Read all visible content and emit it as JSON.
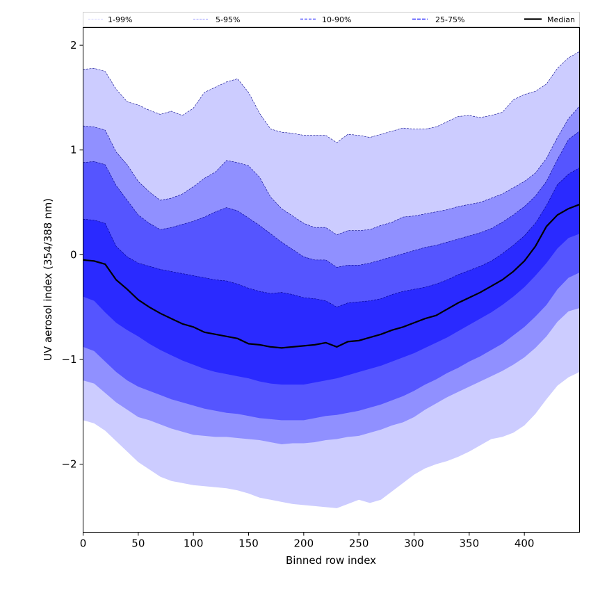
{
  "chart_data": {
    "type": "area",
    "xlabel": "Binned row index",
    "ylabel": "UV aerosol index (354/388 nm)",
    "xlim": [
      0,
      450
    ],
    "ylim": [
      -2.65,
      2.17
    ],
    "x_ticks": [
      0,
      50,
      100,
      150,
      200,
      250,
      300,
      350,
      400
    ],
    "y_ticks": [
      2,
      1,
      0,
      -1,
      -2
    ],
    "x_tick_labels": [
      "0",
      "50",
      "100",
      "150",
      "200",
      "250",
      "300",
      "350",
      "400"
    ],
    "y_tick_labels": [
      "2",
      "1",
      "0",
      "−1",
      "−2"
    ],
    "grid": false,
    "legend_position": "top",
    "legend": [
      "1-99%",
      "5-95%",
      "10-90%",
      "25-75%",
      "Median"
    ],
    "colors": {
      "band_1_99": "#ccccff",
      "band_5_95": "#9090ff",
      "band_10_90": "#5555ff",
      "band_25_75": "#2a2aff",
      "median": "#000000",
      "band_edge": "#00008b"
    },
    "x": [
      0,
      10,
      20,
      30,
      40,
      50,
      60,
      70,
      80,
      90,
      100,
      110,
      120,
      130,
      140,
      150,
      160,
      170,
      180,
      190,
      200,
      210,
      220,
      230,
      240,
      250,
      260,
      270,
      280,
      290,
      300,
      310,
      320,
      330,
      340,
      350,
      360,
      370,
      380,
      390,
      400,
      410,
      420,
      430,
      440,
      450
    ],
    "series": [
      {
        "name": "1-99%",
        "lower": [
          -1.58,
          -1.61,
          -1.68,
          -1.78,
          -1.88,
          -1.98,
          -2.05,
          -2.12,
          -2.16,
          -2.18,
          -2.2,
          -2.21,
          -2.22,
          -2.23,
          -2.25,
          -2.28,
          -2.32,
          -2.34,
          -2.36,
          -2.38,
          -2.39,
          -2.4,
          -2.41,
          -2.42,
          -2.38,
          -2.34,
          -2.37,
          -2.34,
          -2.26,
          -2.18,
          -2.1,
          -2.04,
          -2.0,
          -1.97,
          -1.93,
          -1.88,
          -1.82,
          -1.76,
          -1.74,
          -1.7,
          -1.63,
          -1.52,
          -1.38,
          -1.25,
          -1.17,
          -1.12
        ],
        "upper": [
          1.77,
          1.78,
          1.75,
          1.58,
          1.46,
          1.43,
          1.38,
          1.34,
          1.37,
          1.33,
          1.4,
          1.55,
          1.6,
          1.65,
          1.68,
          1.55,
          1.35,
          1.2,
          1.17,
          1.16,
          1.14,
          1.14,
          1.14,
          1.07,
          1.15,
          1.14,
          1.12,
          1.15,
          1.18,
          1.21,
          1.2,
          1.2,
          1.22,
          1.27,
          1.32,
          1.33,
          1.31,
          1.33,
          1.36,
          1.48,
          1.53,
          1.56,
          1.63,
          1.78,
          1.88,
          1.94
        ]
      },
      {
        "name": "5-95%",
        "lower": [
          -1.2,
          -1.23,
          -1.32,
          -1.41,
          -1.48,
          -1.55,
          -1.58,
          -1.62,
          -1.66,
          -1.69,
          -1.72,
          -1.73,
          -1.74,
          -1.74,
          -1.75,
          -1.76,
          -1.77,
          -1.79,
          -1.81,
          -1.8,
          -1.8,
          -1.79,
          -1.77,
          -1.76,
          -1.74,
          -1.73,
          -1.7,
          -1.67,
          -1.63,
          -1.6,
          -1.55,
          -1.48,
          -1.42,
          -1.36,
          -1.31,
          -1.26,
          -1.21,
          -1.16,
          -1.11,
          -1.05,
          -0.98,
          -0.89,
          -0.78,
          -0.64,
          -0.54,
          -0.51
        ],
        "upper": [
          1.23,
          1.22,
          1.19,
          0.98,
          0.86,
          0.7,
          0.6,
          0.52,
          0.54,
          0.58,
          0.65,
          0.73,
          0.79,
          0.9,
          0.88,
          0.85,
          0.74,
          0.55,
          0.44,
          0.37,
          0.3,
          0.26,
          0.26,
          0.19,
          0.23,
          0.23,
          0.24,
          0.28,
          0.31,
          0.36,
          0.37,
          0.39,
          0.41,
          0.43,
          0.46,
          0.48,
          0.5,
          0.54,
          0.58,
          0.64,
          0.7,
          0.78,
          0.92,
          1.12,
          1.3,
          1.42
        ]
      },
      {
        "name": "10-90%",
        "lower": [
          -0.88,
          -0.92,
          -1.02,
          -1.12,
          -1.2,
          -1.26,
          -1.3,
          -1.34,
          -1.38,
          -1.41,
          -1.44,
          -1.47,
          -1.49,
          -1.51,
          -1.52,
          -1.54,
          -1.56,
          -1.57,
          -1.58,
          -1.58,
          -1.58,
          -1.56,
          -1.54,
          -1.53,
          -1.51,
          -1.49,
          -1.46,
          -1.43,
          -1.39,
          -1.35,
          -1.3,
          -1.24,
          -1.19,
          -1.13,
          -1.08,
          -1.02,
          -0.97,
          -0.91,
          -0.85,
          -0.77,
          -0.69,
          -0.59,
          -0.48,
          -0.33,
          -0.22,
          -0.17
        ],
        "upper": [
          0.88,
          0.89,
          0.86,
          0.66,
          0.52,
          0.38,
          0.3,
          0.24,
          0.26,
          0.29,
          0.32,
          0.36,
          0.41,
          0.45,
          0.42,
          0.35,
          0.28,
          0.2,
          0.12,
          0.05,
          -0.02,
          -0.05,
          -0.05,
          -0.12,
          -0.1,
          -0.1,
          -0.08,
          -0.05,
          -0.02,
          0.01,
          0.04,
          0.07,
          0.09,
          0.12,
          0.15,
          0.18,
          0.21,
          0.25,
          0.31,
          0.38,
          0.46,
          0.56,
          0.7,
          0.91,
          1.1,
          1.18
        ]
      },
      {
        "name": "25-75%",
        "lower": [
          -0.4,
          -0.44,
          -0.55,
          -0.65,
          -0.72,
          -0.78,
          -0.85,
          -0.91,
          -0.96,
          -1.01,
          -1.05,
          -1.09,
          -1.12,
          -1.14,
          -1.16,
          -1.18,
          -1.21,
          -1.23,
          -1.24,
          -1.24,
          -1.24,
          -1.22,
          -1.2,
          -1.18,
          -1.15,
          -1.12,
          -1.09,
          -1.06,
          -1.02,
          -0.98,
          -0.94,
          -0.89,
          -0.84,
          -0.79,
          -0.73,
          -0.67,
          -0.61,
          -0.55,
          -0.48,
          -0.4,
          -0.31,
          -0.2,
          -0.08,
          0.06,
          0.16,
          0.2
        ],
        "upper": [
          0.34,
          0.33,
          0.3,
          0.08,
          -0.02,
          -0.08,
          -0.11,
          -0.14,
          -0.16,
          -0.18,
          -0.2,
          -0.22,
          -0.24,
          -0.25,
          -0.28,
          -0.32,
          -0.35,
          -0.37,
          -0.36,
          -0.38,
          -0.41,
          -0.42,
          -0.44,
          -0.5,
          -0.46,
          -0.45,
          -0.44,
          -0.42,
          -0.38,
          -0.35,
          -0.33,
          -0.31,
          -0.28,
          -0.24,
          -0.19,
          -0.15,
          -0.11,
          -0.06,
          0.01,
          0.09,
          0.18,
          0.3,
          0.47,
          0.67,
          0.77,
          0.83
        ]
      },
      {
        "name": "Median",
        "values": [
          -0.05,
          -0.06,
          -0.09,
          -0.24,
          -0.33,
          -0.43,
          -0.5,
          -0.56,
          -0.61,
          -0.66,
          -0.69,
          -0.74,
          -0.76,
          -0.78,
          -0.8,
          -0.85,
          -0.86,
          -0.88,
          -0.89,
          -0.88,
          -0.87,
          -0.86,
          -0.84,
          -0.88,
          -0.83,
          -0.82,
          -0.79,
          -0.76,
          -0.72,
          -0.69,
          -0.65,
          -0.61,
          -0.58,
          -0.52,
          -0.46,
          -0.41,
          -0.36,
          -0.3,
          -0.24,
          -0.16,
          -0.06,
          0.08,
          0.27,
          0.38,
          0.44,
          0.48
        ]
      }
    ]
  }
}
